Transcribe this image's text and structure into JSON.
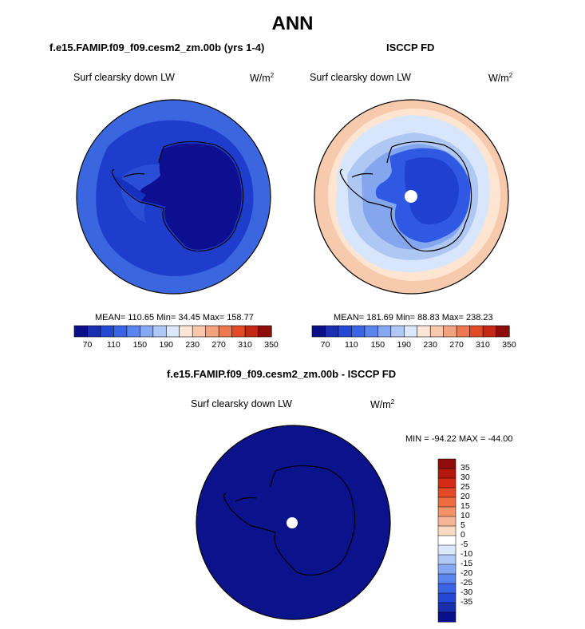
{
  "figure": {
    "title": "ANN"
  },
  "panels": [
    {
      "title": "f.e15.FAMIP.f09_f09.cesm2_zm.00b (yrs 1-4)",
      "variable": "Surf clearsky down LW",
      "units_base": "W/m",
      "units_exp": "2",
      "stats": "MEAN= 110.65  Min=  34.45  Max= 158.77",
      "fill_levels": [
        "#3a66e0",
        "#1c36c8",
        "#0b0f90"
      ],
      "pole_hole": false
    },
    {
      "title": "ISCCP FD",
      "variable": "Surf clearsky down LW",
      "units_base": "W/m",
      "units_exp": "2",
      "stats": "MEAN= 181.69  Min=  88.83  Max= 238.23",
      "fill_levels": [
        "#f7c9ad",
        "#fde5d2",
        "#d8e6fb",
        "#aec7f3",
        "#84a6ee",
        "#2f59e2",
        "#1f40d0"
      ],
      "pole_hole": true
    }
  ],
  "colorbar_horizontal": {
    "colors": [
      "#0a0f8a",
      "#1a2fb0",
      "#2447d4",
      "#3a63e6",
      "#5a85ee",
      "#86a8f2",
      "#afc8f6",
      "#dbe8fb",
      "#fde6d5",
      "#f8c8ad",
      "#f3a280",
      "#ee7850",
      "#e24a26",
      "#c32814",
      "#8e0c0a"
    ],
    "labels": [
      "70",
      "110",
      "150",
      "190",
      "230",
      "270",
      "310",
      "350"
    ]
  },
  "difference": {
    "title": "f.e15.FAMIP.f09_f09.cesm2_zm.00b - ISCCP FD",
    "variable": "Surf clearsky down LW",
    "units_base": "W/m",
    "units_exp": "2",
    "stats": "MIN = -94.22 MAX = -44.00",
    "fill_color": "#0b138c",
    "pole_hole": true
  },
  "colorbar_vertical": {
    "colors_top_to_bottom": [
      "#8e0c0a",
      "#b4190f",
      "#d22c16",
      "#e44a25",
      "#ef6c43",
      "#f39168",
      "#f6b595",
      "#fbdac4",
      "#ffffff",
      "#dbe8fb",
      "#afc8f6",
      "#86a8f2",
      "#5a85ee",
      "#3a63e6",
      "#2447d4",
      "#1a2fb0",
      "#0a0f8a"
    ],
    "labels": [
      "35",
      "30",
      "25",
      "20",
      "15",
      "10",
      "5",
      "0",
      "-5",
      "-10",
      "-15",
      "-20",
      "-25",
      "-30",
      "-35"
    ]
  }
}
